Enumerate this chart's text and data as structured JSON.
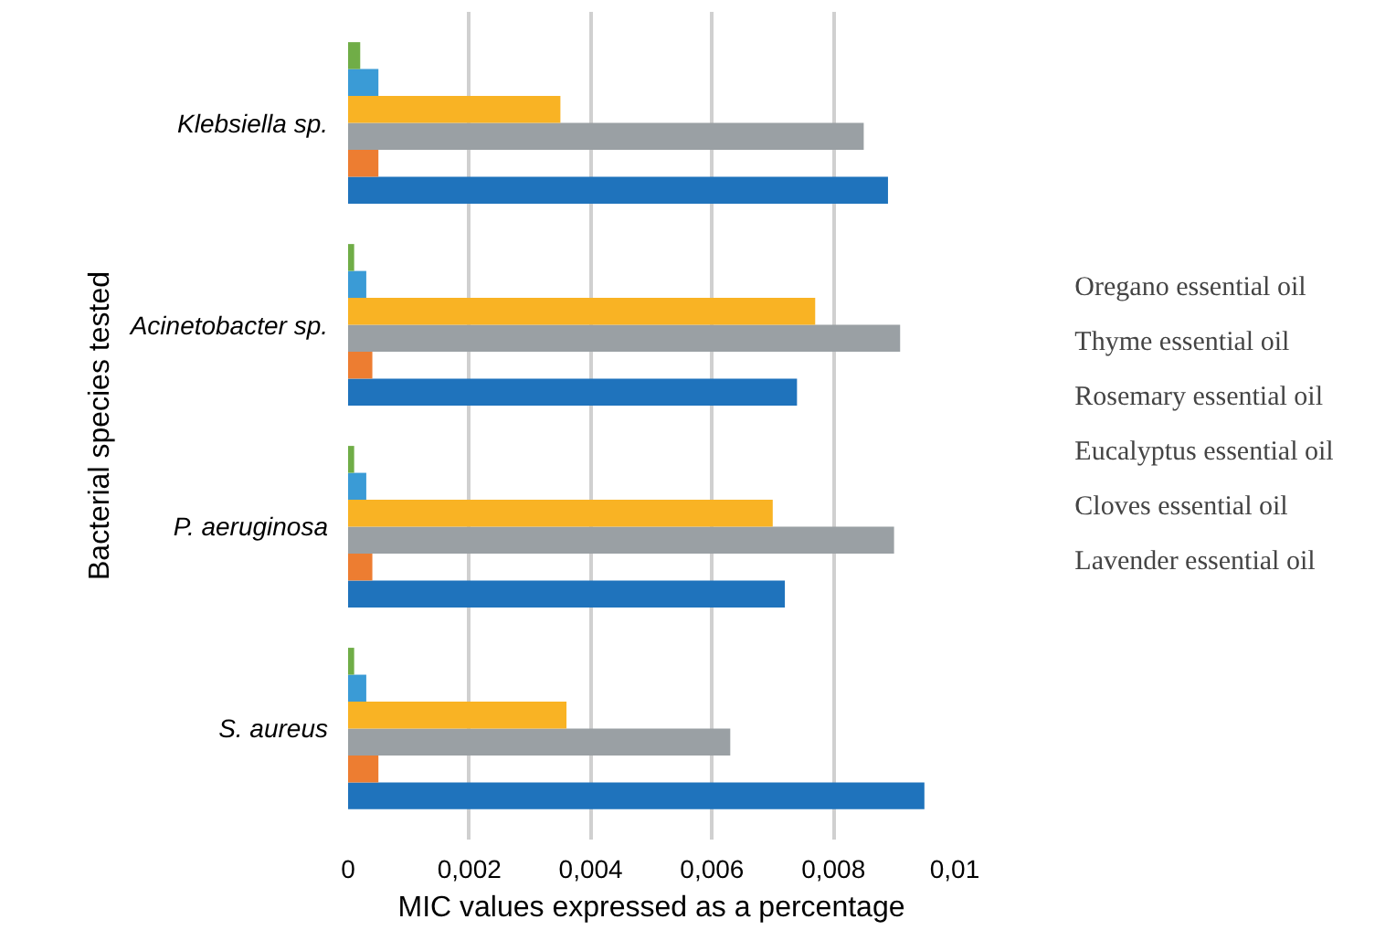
{
  "chart_data": {
    "type": "bar",
    "orientation": "horizontal",
    "xlabel": "MIC values expressed as a percentage",
    "ylabel": "Bacterial species tested",
    "categories": [
      "Klebsiella sp.",
      "Acinetobacter sp.",
      "P. aeruginosa",
      "S. aureus"
    ],
    "series": [
      {
        "name": "Lavender essential oil",
        "color": "#1f73bc",
        "values": [
          0.0089,
          0.0074,
          0.0072,
          0.0095
        ]
      },
      {
        "name": "Cloves essential oil",
        "color": "#ed7d31",
        "values": [
          0.0005,
          0.0004,
          0.0004,
          0.0005
        ]
      },
      {
        "name": "Eucalyptus essential oil",
        "color": "#9aa0a4",
        "values": [
          0.0085,
          0.0091,
          0.009,
          0.0063
        ]
      },
      {
        "name": "Rosemary essential oil",
        "color": "#f9b324",
        "values": [
          0.0035,
          0.0077,
          0.007,
          0.0036
        ]
      },
      {
        "name": "Thyme essential oil",
        "color": "#3a9bd6",
        "values": [
          0.0005,
          0.0003,
          0.0003,
          0.0003
        ]
      },
      {
        "name": "Oregano essential oil",
        "color": "#70ad47",
        "values": [
          0.0002,
          0.0001,
          0.0001,
          0.0001
        ]
      }
    ],
    "xlim": [
      0,
      0.01
    ],
    "xticks": [
      0,
      {
        "value": 0.002,
        "label": "0,002"
      },
      {
        "value": 0.004,
        "label": "0,004"
      },
      {
        "value": 0.006,
        "label": "0,006"
      },
      {
        "value": 0.008,
        "label": "0,008"
      },
      {
        "value": 0.01,
        "label": "0,01"
      }
    ],
    "grid": "x",
    "legend": "right"
  }
}
